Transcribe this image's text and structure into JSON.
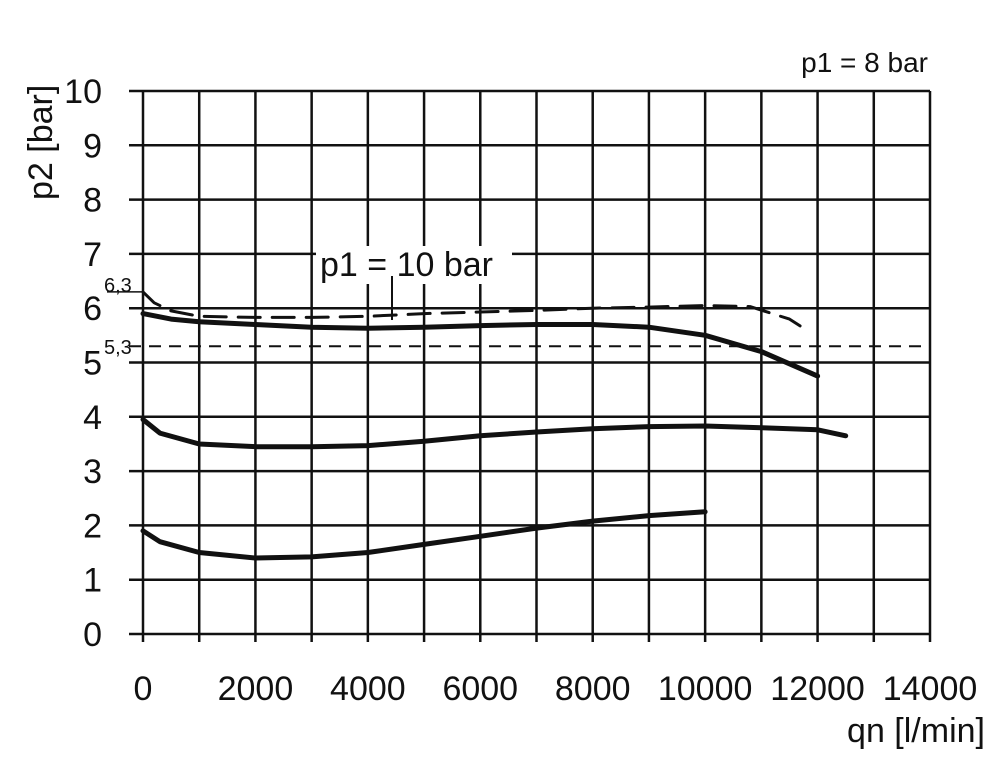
{
  "chart_data": {
    "type": "line",
    "title": "p1 = 8 bar",
    "xlabel": "qn [l/min]",
    "ylabel": "p2 [bar]",
    "xlim": [
      0,
      14000
    ],
    "ylim": [
      0,
      10
    ],
    "xticks": [
      0,
      2000,
      4000,
      6000,
      8000,
      10000,
      12000,
      14000
    ],
    "yticks": [
      0,
      1,
      2,
      3,
      4,
      5,
      6,
      7,
      8,
      9,
      10
    ],
    "grid": true,
    "reference_lines": [
      {
        "y": 6.3,
        "label": "6,3"
      },
      {
        "y": 5.3,
        "label": "5,3",
        "style": "dashed"
      }
    ],
    "series": [
      {
        "name": "p1 = 10 bar",
        "style": "dashed",
        "x": [
          0,
          200,
          500,
          1000,
          2000,
          3000,
          4000,
          5000,
          6000,
          7000,
          8000,
          9000,
          10000,
          10800,
          11500,
          11800
        ],
        "y": [
          6.3,
          6.1,
          5.95,
          5.85,
          5.83,
          5.83,
          5.85,
          5.9,
          5.93,
          5.96,
          6.0,
          6.02,
          6.05,
          6.03,
          5.8,
          5.6
        ]
      },
      {
        "style": "solid",
        "x": [
          0,
          500,
          1000,
          2000,
          3000,
          4000,
          5000,
          6000,
          7000,
          8000,
          9000,
          10000,
          11000,
          12000
        ],
        "y": [
          5.9,
          5.8,
          5.75,
          5.7,
          5.65,
          5.63,
          5.65,
          5.68,
          5.7,
          5.7,
          5.65,
          5.5,
          5.2,
          4.75
        ]
      },
      {
        "style": "solid",
        "x": [
          0,
          300,
          1000,
          2000,
          3000,
          4000,
          5000,
          6000,
          7000,
          8000,
          9000,
          10000,
          11000,
          12000,
          12500
        ],
        "y": [
          3.95,
          3.7,
          3.5,
          3.45,
          3.45,
          3.47,
          3.55,
          3.65,
          3.72,
          3.78,
          3.82,
          3.83,
          3.8,
          3.76,
          3.65
        ]
      },
      {
        "style": "solid",
        "x": [
          0,
          300,
          1000,
          2000,
          3000,
          4000,
          5000,
          6000,
          7000,
          8000,
          9000,
          10000
        ],
        "y": [
          1.9,
          1.7,
          1.5,
          1.4,
          1.42,
          1.5,
          1.65,
          1.8,
          1.95,
          2.08,
          2.18,
          2.25
        ]
      }
    ]
  }
}
